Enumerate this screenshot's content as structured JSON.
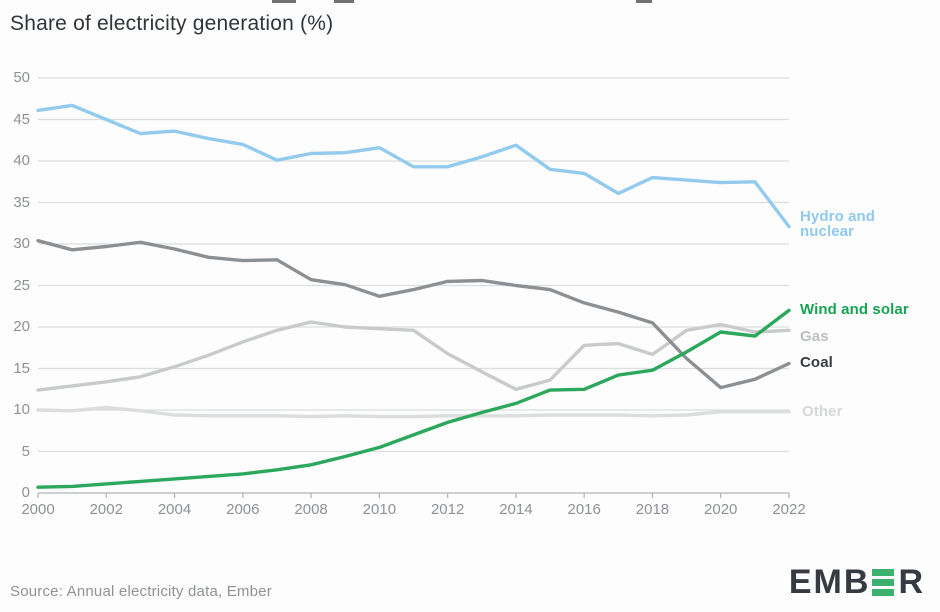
{
  "header": {
    "title": "Share of electricity generation (%)"
  },
  "theme": {
    "background": "#fdfdfd",
    "grid_color": "#dcdddd",
    "axis_color": "#b3b5b6",
    "tick_text_color": "#8e9194",
    "title_color": "#2f353a",
    "logo_dark": "#363b41",
    "logo_green": "#3cb06d"
  },
  "chart_data": {
    "type": "line",
    "title": "Share of electricity generation (%)",
    "xlabel": "",
    "ylabel": "Share of electricity generation (%)",
    "x_range": [
      2000,
      2022
    ],
    "ylim": [
      0,
      50
    ],
    "yticks": [
      0,
      5,
      10,
      15,
      20,
      25,
      30,
      35,
      40,
      45,
      50
    ],
    "xticks": [
      2000,
      2002,
      2004,
      2006,
      2008,
      2010,
      2012,
      2014,
      2016,
      2018,
      2020,
      2022
    ],
    "grid": "horizontal",
    "legend_position": "right-of-line-labels",
    "x": [
      2000,
      2001,
      2002,
      2003,
      2004,
      2005,
      2006,
      2007,
      2008,
      2009,
      2010,
      2011,
      2012,
      2013,
      2014,
      2015,
      2016,
      2017,
      2018,
      2019,
      2020,
      2021,
      2022
    ],
    "series": [
      {
        "name": "Other",
        "label": "Other",
        "color": "#dcdddd",
        "values": [
          10.0,
          9.9,
          10.3,
          9.9,
          9.4,
          9.3,
          9.3,
          9.3,
          9.2,
          9.3,
          9.2,
          9.2,
          9.3,
          9.3,
          9.3,
          9.4,
          9.4,
          9.4,
          9.3,
          9.4,
          9.8,
          9.8,
          9.8
        ]
      },
      {
        "name": "Gas",
        "label": "Gas",
        "color": "#c8cacb",
        "values": [
          12.4,
          12.9,
          13.4,
          14.0,
          15.2,
          16.6,
          18.2,
          19.6,
          20.6,
          20.0,
          19.8,
          19.6,
          16.8,
          14.6,
          12.5,
          13.6,
          17.8,
          18.0,
          16.7,
          19.6,
          20.3,
          19.4,
          19.6
        ]
      },
      {
        "name": "Coal",
        "label": "Coal",
        "color": "#8d9093",
        "values": [
          30.4,
          29.3,
          29.7,
          30.2,
          29.4,
          28.4,
          28.0,
          28.1,
          25.7,
          25.1,
          23.7,
          24.5,
          25.5,
          25.6,
          25.0,
          24.5,
          22.9,
          21.8,
          20.5,
          16.2,
          12.7,
          13.7,
          15.6
        ]
      },
      {
        "name": "Hydro and nuclear",
        "label": "Hydro and nuclear",
        "color": "#92cbee",
        "values": [
          46.1,
          46.7,
          45.0,
          43.3,
          43.6,
          42.7,
          42.0,
          40.1,
          40.9,
          41.0,
          41.6,
          39.3,
          39.3,
          40.5,
          41.9,
          39.0,
          38.5,
          36.1,
          38.0,
          37.7,
          37.4,
          37.5,
          32.1
        ]
      },
      {
        "name": "Wind and solar",
        "label": "Wind and solar",
        "color": "#2ca85c",
        "values": [
          0.7,
          0.8,
          1.1,
          1.4,
          1.7,
          2.0,
          2.3,
          2.8,
          3.4,
          4.4,
          5.5,
          7.0,
          8.5,
          9.7,
          10.8,
          12.4,
          12.5,
          14.2,
          14.8,
          17.0,
          19.4,
          18.9,
          22.0
        ]
      }
    ]
  },
  "footer": {
    "source": "Source: Annual electricity data, Ember",
    "logo": {
      "name": "EMBER",
      "text_before_green_e": "EMB",
      "text_after_green_e": "R"
    }
  }
}
